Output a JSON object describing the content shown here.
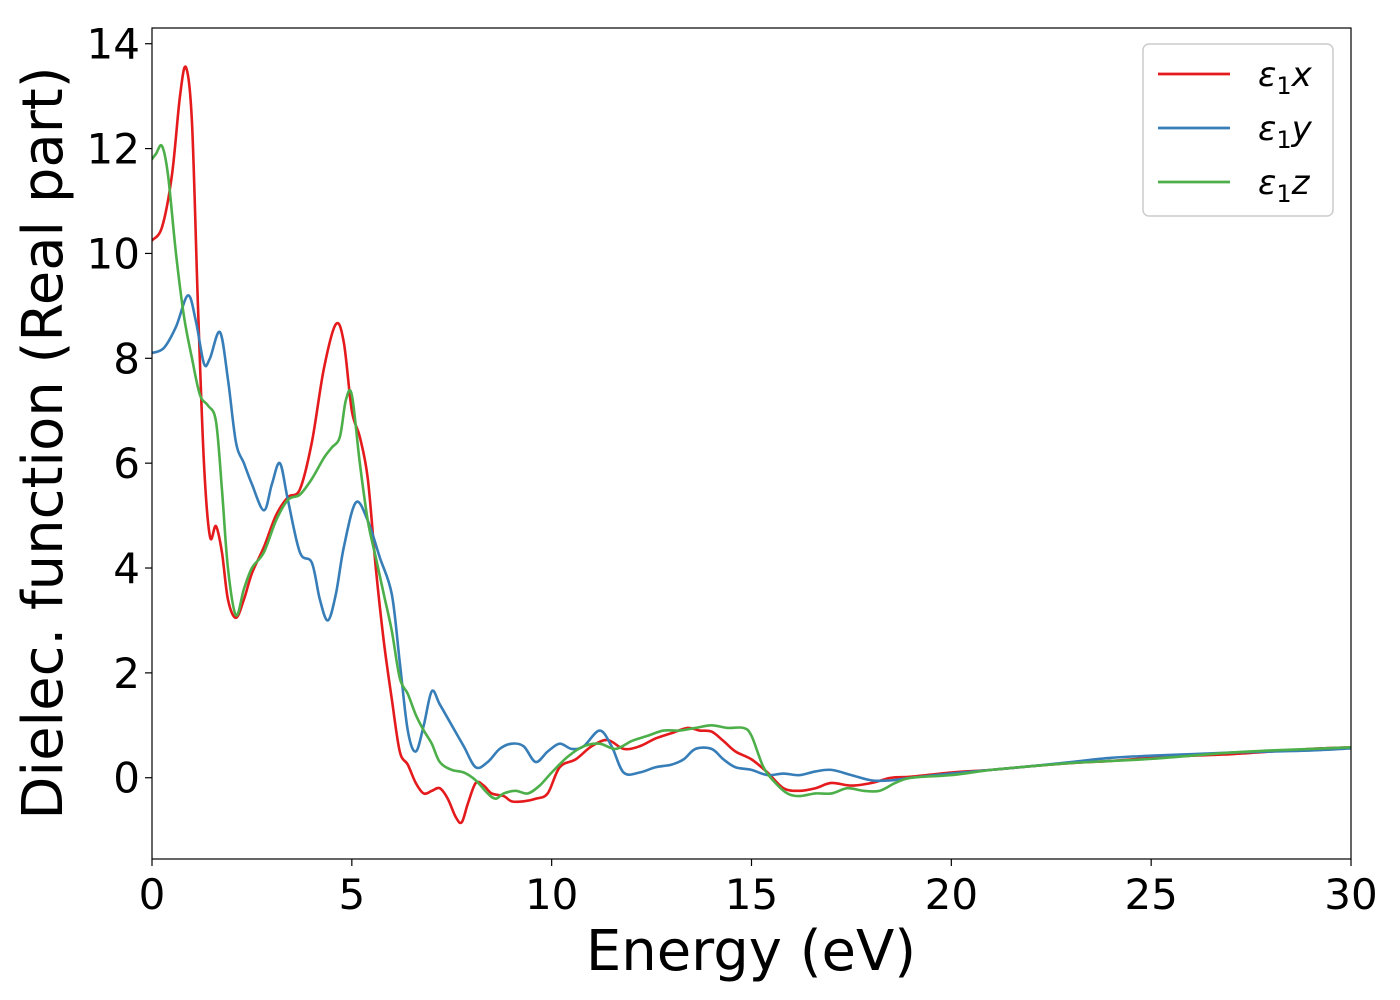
{
  "chart_data": {
    "type": "line",
    "title": "",
    "xlabel": "Energy (eV)",
    "ylabel": "Dielec. function (Real part)",
    "xlim": [
      0,
      30
    ],
    "ylim": [
      -1.55,
      14.3
    ],
    "xticks": [
      0,
      5,
      10,
      15,
      20,
      25,
      30
    ],
    "yticks": [
      0,
      2,
      4,
      6,
      8,
      10,
      12,
      14
    ],
    "xtick_labels": [
      "0",
      "5",
      "10",
      "15",
      "20",
      "25",
      "30"
    ],
    "ytick_labels": [
      "0",
      "2",
      "4",
      "6",
      "8",
      "10",
      "12",
      "14"
    ],
    "grid": false,
    "legend_position": "top-right",
    "series": [
      {
        "name": "ε₁x",
        "legend_base": "ε",
        "legend_sub": "1",
        "legend_tail": "x",
        "color": "#e41a1c",
        "x": [
          0,
          0.25,
          0.5,
          0.7,
          0.85,
          1.0,
          1.15,
          1.3,
          1.45,
          1.6,
          1.75,
          1.9,
          2.1,
          2.3,
          2.5,
          2.8,
          3.1,
          3.4,
          3.7,
          4.0,
          4.3,
          4.6,
          4.8,
          5.0,
          5.2,
          5.4,
          5.6,
          5.8,
          6.0,
          6.2,
          6.4,
          6.6,
          6.8,
          7.0,
          7.2,
          7.4,
          7.6,
          7.75,
          7.9,
          8.1,
          8.3,
          8.5,
          8.8,
          9.0,
          9.3,
          9.6,
          9.9,
          10.2,
          10.6,
          11.0,
          11.4,
          11.8,
          12.2,
          12.6,
          13.0,
          13.4,
          13.7,
          14.0,
          14.3,
          14.6,
          15.0,
          15.4,
          15.8,
          16.2,
          16.6,
          17.0,
          17.5,
          18.0,
          18.5,
          19.0,
          20.0,
          21.0,
          22.0,
          23.0,
          24.0,
          25.0,
          26.0,
          27.0,
          28.0,
          29.0,
          30.0
        ],
        "y": [
          10.25,
          10.5,
          11.5,
          13.0,
          13.55,
          12.5,
          9.0,
          6.0,
          4.6,
          4.8,
          4.3,
          3.4,
          3.05,
          3.4,
          3.9,
          4.4,
          5.0,
          5.35,
          5.5,
          6.4,
          7.8,
          8.65,
          8.3,
          7.0,
          6.5,
          5.7,
          4.0,
          2.6,
          1.5,
          0.5,
          0.25,
          -0.1,
          -0.3,
          -0.25,
          -0.2,
          -0.4,
          -0.75,
          -0.85,
          -0.5,
          -0.1,
          -0.15,
          -0.3,
          -0.35,
          -0.45,
          -0.45,
          -0.4,
          -0.3,
          0.2,
          0.35,
          0.6,
          0.72,
          0.55,
          0.6,
          0.75,
          0.85,
          0.95,
          0.9,
          0.88,
          0.7,
          0.5,
          0.35,
          0.1,
          -0.2,
          -0.25,
          -0.2,
          -0.1,
          -0.15,
          -0.1,
          0.0,
          0.02,
          0.1,
          0.15,
          0.22,
          0.28,
          0.32,
          0.38,
          0.42,
          0.45,
          0.5,
          0.55,
          0.58
        ]
      },
      {
        "name": "ε₁y",
        "legend_base": "ε",
        "legend_sub": "1",
        "legend_tail": "y",
        "color": "#377eb8",
        "x": [
          0,
          0.3,
          0.6,
          0.9,
          1.1,
          1.3,
          1.45,
          1.7,
          1.9,
          2.1,
          2.3,
          2.5,
          2.8,
          3.0,
          3.2,
          3.4,
          3.7,
          4.0,
          4.2,
          4.4,
          4.6,
          4.8,
          5.1,
          5.4,
          5.7,
          6.0,
          6.2,
          6.4,
          6.6,
          6.8,
          7.0,
          7.2,
          7.5,
          7.8,
          8.1,
          8.4,
          8.7,
          9.0,
          9.3,
          9.6,
          9.9,
          10.2,
          10.5,
          10.8,
          11.2,
          11.5,
          11.8,
          12.2,
          12.6,
          13.0,
          13.3,
          13.6,
          14.0,
          14.3,
          14.6,
          15.0,
          15.4,
          15.8,
          16.2,
          16.6,
          17.0,
          17.5,
          18.0,
          18.5,
          19.0,
          20.0,
          21.0,
          22.0,
          23.0,
          24.0,
          25.0,
          26.0,
          27.0,
          28.0,
          29.0,
          30.0
        ],
        "y": [
          8.1,
          8.2,
          8.6,
          9.2,
          8.7,
          7.9,
          8.0,
          8.5,
          7.6,
          6.4,
          6.0,
          5.6,
          5.1,
          5.6,
          6.0,
          5.3,
          4.3,
          4.1,
          3.4,
          3.0,
          3.5,
          4.4,
          5.25,
          4.9,
          4.2,
          3.5,
          2.2,
          0.9,
          0.5,
          1.0,
          1.65,
          1.4,
          1.0,
          0.6,
          0.2,
          0.3,
          0.55,
          0.65,
          0.6,
          0.3,
          0.5,
          0.65,
          0.55,
          0.6,
          0.9,
          0.6,
          0.1,
          0.1,
          0.2,
          0.25,
          0.35,
          0.55,
          0.55,
          0.35,
          0.2,
          0.15,
          0.05,
          0.08,
          0.05,
          0.12,
          0.15,
          0.05,
          -0.05,
          -0.05,
          0.0,
          0.08,
          0.15,
          0.22,
          0.3,
          0.38,
          0.42,
          0.45,
          0.48,
          0.5,
          0.52,
          0.56
        ]
      },
      {
        "name": "ε₁z",
        "legend_base": "ε",
        "legend_sub": "1",
        "legend_tail": "z",
        "color": "#4daf4a",
        "x": [
          0,
          0.1,
          0.25,
          0.4,
          0.6,
          0.8,
          1.0,
          1.2,
          1.4,
          1.6,
          1.75,
          1.9,
          2.1,
          2.3,
          2.5,
          2.8,
          3.1,
          3.4,
          3.7,
          4.0,
          4.3,
          4.5,
          4.7,
          4.85,
          5.0,
          5.2,
          5.4,
          5.6,
          5.8,
          6.0,
          6.2,
          6.4,
          6.6,
          6.8,
          7.0,
          7.2,
          7.5,
          7.8,
          8.1,
          8.4,
          8.6,
          8.8,
          9.1,
          9.4,
          9.7,
          10.0,
          10.4,
          10.8,
          11.2,
          11.6,
          12.0,
          12.4,
          12.8,
          13.2,
          13.6,
          14.0,
          14.4,
          14.8,
          15.0,
          15.3,
          15.6,
          15.9,
          16.2,
          16.6,
          17.0,
          17.4,
          17.8,
          18.2,
          18.6,
          19.0,
          20.0,
          21.0,
          22.0,
          23.0,
          24.0,
          25.0,
          26.0,
          27.0,
          28.0,
          29.0,
          30.0
        ],
        "y": [
          11.8,
          11.9,
          12.05,
          11.5,
          10.0,
          8.8,
          8.0,
          7.3,
          7.1,
          6.8,
          5.5,
          4.0,
          3.1,
          3.6,
          4.0,
          4.3,
          4.9,
          5.3,
          5.4,
          5.7,
          6.1,
          6.3,
          6.5,
          7.2,
          7.3,
          6.0,
          4.9,
          4.2,
          3.5,
          2.8,
          1.9,
          1.6,
          1.2,
          0.9,
          0.65,
          0.3,
          0.15,
          0.1,
          -0.05,
          -0.3,
          -0.4,
          -0.3,
          -0.25,
          -0.3,
          -0.15,
          0.1,
          0.4,
          0.6,
          0.65,
          0.55,
          0.7,
          0.8,
          0.9,
          0.9,
          0.95,
          1.0,
          0.95,
          0.95,
          0.8,
          0.2,
          -0.1,
          -0.3,
          -0.35,
          -0.3,
          -0.3,
          -0.2,
          -0.25,
          -0.25,
          -0.1,
          0.0,
          0.05,
          0.15,
          0.22,
          0.28,
          0.32,
          0.36,
          0.42,
          0.48,
          0.52,
          0.55,
          0.58
        ]
      }
    ]
  }
}
